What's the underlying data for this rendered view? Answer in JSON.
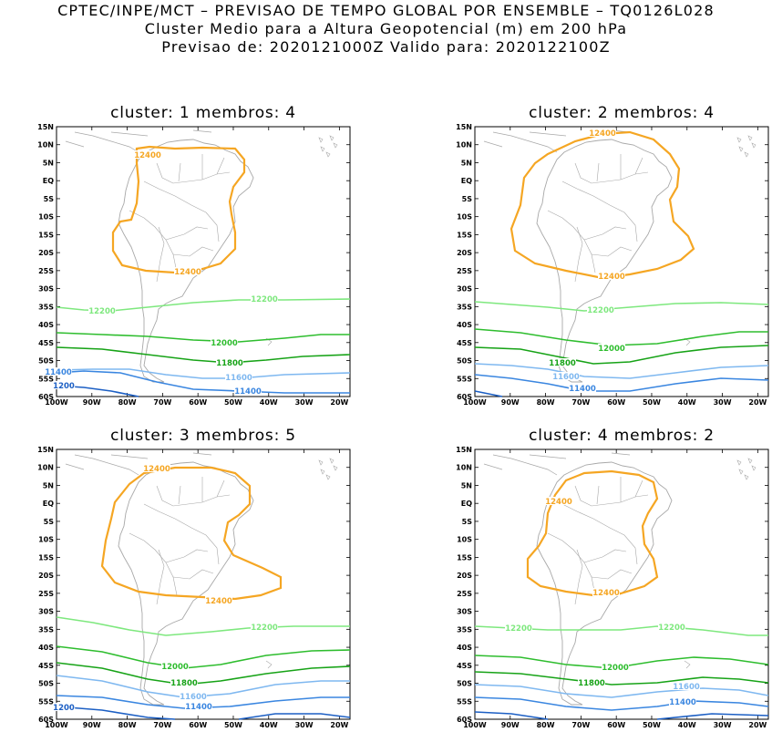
{
  "header": {
    "line1": "CPTEC/INPE/MCT – PREVISAO DE TEMPO GLOBAL POR ENSEMBLE – TQ0126L028",
    "line2": "Cluster Medio para a Altura Geopotencial (m) em 200 hPa",
    "line3": "Previsao de: 2020121000Z    Valido para: 2020122100Z"
  },
  "axes": {
    "lat_ticks": [
      "15N",
      "10N",
      "5N",
      "EQ",
      "5S",
      "10S",
      "15S",
      "20S",
      "25S",
      "30S",
      "35S",
      "40S",
      "45S",
      "50S",
      "55S",
      "60S"
    ],
    "lon_ticks": [
      "100W",
      "90W",
      "80W",
      "70W",
      "60W",
      "50W",
      "40W",
      "30W",
      "20W"
    ]
  },
  "colors": {
    "c12400": "#f5a623",
    "c12200": "#7ee87e",
    "c12000": "#2ebd2e",
    "c11800": "#17a317",
    "c11600": "#7fb8f0",
    "c11400": "#3a86e0",
    "c11200": "#1c5fc4",
    "coast": "#a8a8a8"
  },
  "panels": [
    {
      "title": "cluster: 1   membros: 4",
      "labels": {
        "12400a": "12400",
        "12400b": "12400",
        "12200": "12200",
        "12000": "12000",
        "11800": "11800",
        "11600": "11600",
        "11400": "11400",
        "11400b": "11400",
        "11200": "1200"
      }
    },
    {
      "title": "cluster: 2   membros: 4",
      "labels": {
        "12400a": "12400",
        "12400b": "12400",
        "12200": "12200",
        "12000": "12000",
        "11800": "11800",
        "11600": "11600",
        "11400": "11400"
      }
    },
    {
      "title": "cluster: 3   membros: 5",
      "labels": {
        "12400a": "12400",
        "12400b": "12400",
        "12200": "12200",
        "12000": "12000",
        "11800": "11800",
        "11600": "11600",
        "11400": "11400",
        "11200": "1200"
      }
    },
    {
      "title": "cluster: 4   membros: 2",
      "labels": {
        "12400a": "12400",
        "12400b": "12400",
        "12200a": "12200",
        "12200b": "12200",
        "12000": "12000",
        "11800": "11800",
        "11600": "11600",
        "11400": "11400"
      }
    }
  ]
}
